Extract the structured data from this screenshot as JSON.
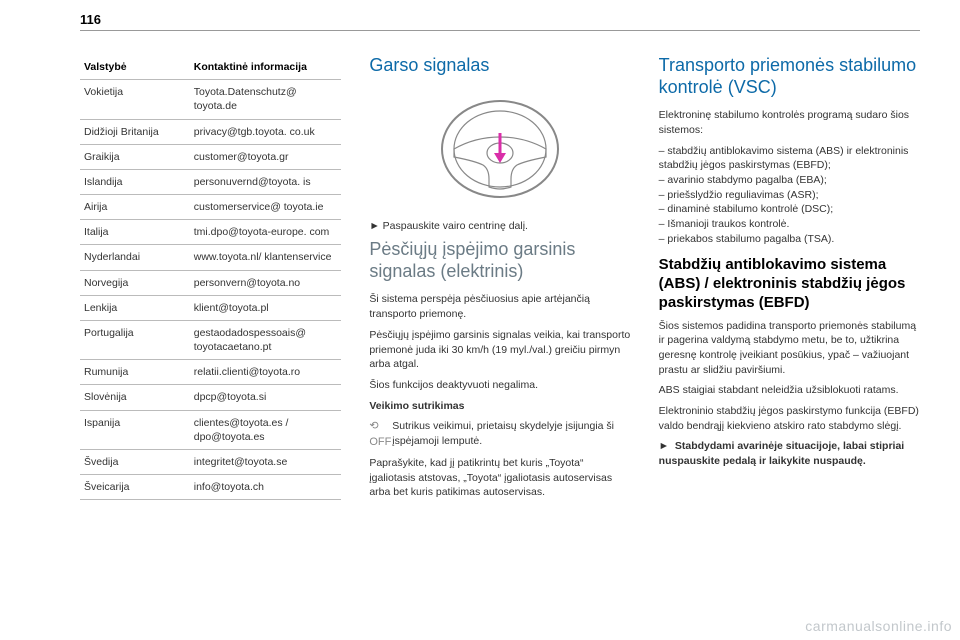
{
  "page_number": "116",
  "table": {
    "header_country": "Valstybė",
    "header_contact": "Kontaktinė informacija",
    "rows": [
      {
        "country": "Vokietija",
        "contact": "Toyota.Datenschutz@ toyota.de"
      },
      {
        "country": "Didžioji Britanija",
        "contact": "privacy@tgb.toyota. co.uk"
      },
      {
        "country": "Graikija",
        "contact": "customer@toyota.gr"
      },
      {
        "country": "Islandija",
        "contact": "personuvernd@toyota. is"
      },
      {
        "country": "Airija",
        "contact": "customerservice@ toyota.ie"
      },
      {
        "country": "Italija",
        "contact": "tmi.dpo@toyota-europe. com"
      },
      {
        "country": "Nyderlandai",
        "contact": "www.toyota.nl/ klantenservice"
      },
      {
        "country": "Norvegija",
        "contact": "personvern@toyota.no"
      },
      {
        "country": "Lenkija",
        "contact": "klient@toyota.pl"
      },
      {
        "country": "Portugalija",
        "contact": "gestaodadospessoais@ toyotacaetano.pt"
      },
      {
        "country": "Rumunija",
        "contact": "relatii.clienti@toyota.ro"
      },
      {
        "country": "Slovėnija",
        "contact": "dpcp@toyota.si"
      },
      {
        "country": "Ispanija",
        "contact": "clientes@toyota.es / dpo@toyota.es"
      },
      {
        "country": "Švedija",
        "contact": "integritet@toyota.se"
      },
      {
        "country": "Šveicarija",
        "contact": "info@toyota.ch"
      }
    ]
  },
  "col2": {
    "h_sound": "Garso signalas",
    "wheel_arrow_color": "#d92ea8",
    "wheel_stroke": "#888888",
    "press_center": "Paspauskite vairo centrinę dalį.",
    "h_ped": "Pėsčiųjų įspėjimo garsinis signalas (elektrinis)",
    "ped_p1": "Ši sistema perspėja pėsčiuosius apie artėjančią transporto priemonę.",
    "ped_p2": "Pėsčiųjų įspėjimo garsinis signalas veikia, kai transporto priemonė juda iki 30 km/h (19 myl./val.) greičiu pirmyn arba atgal.",
    "ped_p3": "Šios funkcijos deaktyvuoti negalima.",
    "malf_h": "Veikimo sutrikimas",
    "malf_icon": "⟲\nOFF",
    "malf_p1": "Sutrikus veikimui, prietaisų skydelyje įsijungia ši įspėjamoji lemputė.",
    "malf_p2": "Paprašykite, kad jį patikrintų bet kuris „Toyota“ įgaliotasis atstovas, „Toyota“ įgaliotasis autoservisas arba bet kuris patikimas autoservisas."
  },
  "col3": {
    "h_vsc": "Transporto priemonės stabilumo kontrolė (VSC)",
    "intro": "Elektroninę stabilumo kontrolės programą sudaro šios sistemos:",
    "items": [
      "stabdžių antiblokavimo sistema (ABS) ir elektroninis stabdžių jėgos paskirstymas (EBFD);",
      "avarinio stabdymo pagalba (EBA);",
      "priešslydžio reguliavimas (ASR);",
      "dinaminė stabilumo kontrolė (DSC);",
      "Išmanioji traukos kontrolė.",
      "priekabos stabilumo pagalba (TSA)."
    ],
    "h_abs": "Stabdžių antiblokavimo sistema (ABS) / elektroninis stabdžių jėgos paskirstymas (EBFD)",
    "abs_p1": "Šios sistemos padidina transporto priemonės stabilumą ir pagerina valdymą stabdymo metu, be to, užtikrina geresnę kontrolę įveikiant posūkius, ypač – važiuojant prastu ar slidžiu paviršiumi.",
    "abs_p2": "ABS staigiai stabdant neleidžia užsiblokuoti ratams.",
    "abs_p3": "Elektroninio stabdžių jėgos paskirstymo funkcija (EBFD) valdo bendrąjį kiekvieno atskiro rato stabdymo slėgį.",
    "abs_bold": "Stabdydami avarinėje situacijoje, labai stipriai nuspauskite pedalą ir laikykite nuspaudę."
  },
  "watermark": "carmanualsonline.info",
  "colors": {
    "heading_blue": "#0d6aa8",
    "heading_gray": "#6b7b85",
    "text": "#333333",
    "rule": "#999999"
  }
}
